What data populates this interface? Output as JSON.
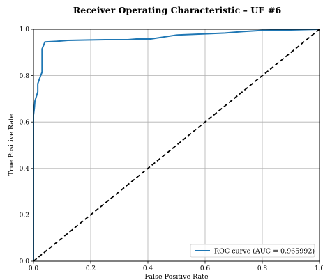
{
  "chart_data": {
    "type": "line",
    "title": "Receiver Operating Characteristic – UE #6",
    "xlabel": "False Positive Rate",
    "ylabel": "True Positive Rate",
    "xlim": [
      0.0,
      1.0
    ],
    "ylim": [
      0.0,
      1.0
    ],
    "xticks": [
      "0.0",
      "0.2",
      "0.4",
      "0.6",
      "0.8",
      "1.0"
    ],
    "yticks": [
      "0.0",
      "0.2",
      "0.4",
      "0.6",
      "0.8",
      "1.0"
    ],
    "grid": true,
    "legend_position": "lower-right",
    "series": [
      {
        "name": "ROC curve (AUC = 0.965992)",
        "color": "#1f77b4",
        "style": "solid",
        "x": [
          0.0,
          0.0,
          0.003,
          0.005,
          0.01,
          0.015,
          0.015,
          0.025,
          0.03,
          0.03,
          0.04,
          0.08,
          0.12,
          0.2,
          0.25,
          0.33,
          0.36,
          0.41,
          0.5,
          0.6,
          0.67,
          0.73,
          0.8,
          0.9,
          1.0
        ],
        "y": [
          0.0,
          0.63,
          0.66,
          0.69,
          0.71,
          0.73,
          0.765,
          0.8,
          0.815,
          0.915,
          0.945,
          0.948,
          0.952,
          0.954,
          0.955,
          0.955,
          0.958,
          0.958,
          0.975,
          0.98,
          0.984,
          0.99,
          0.995,
          0.997,
          1.0
        ]
      },
      {
        "name": "",
        "color": "#000000",
        "style": "dashed",
        "x": [
          0.0,
          1.0
        ],
        "y": [
          0.0,
          1.0
        ]
      }
    ]
  }
}
